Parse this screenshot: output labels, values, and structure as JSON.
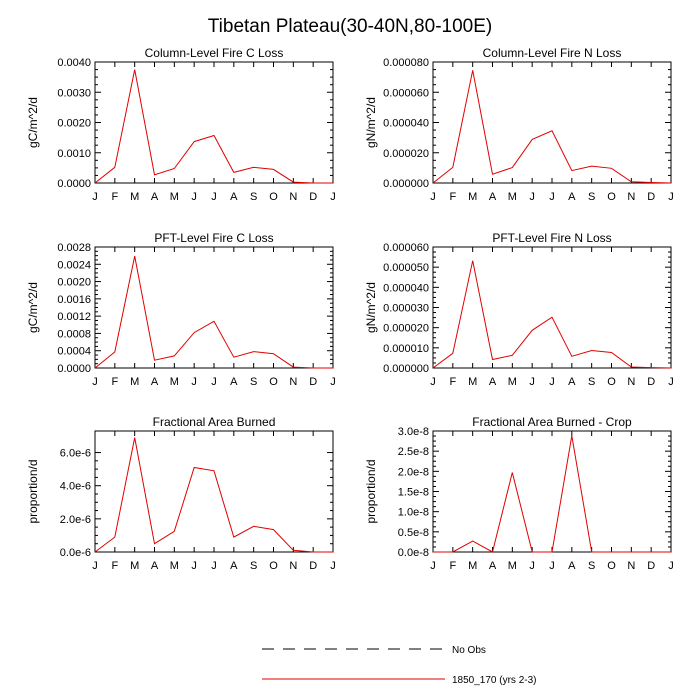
{
  "figure": {
    "title": "Tibetan Plateau(30-40N,80-100E)",
    "colors": {
      "model_line": "#e00000",
      "obs_line": "#000000",
      "axis": "#000000"
    }
  },
  "chart_data": [
    {
      "type": "line",
      "title": "Column-Level Fire C Loss",
      "ylabel": "gC/m^2/d",
      "categories": [
        "J",
        "F",
        "M",
        "A",
        "M",
        "J",
        "J",
        "A",
        "S",
        "O",
        "N",
        "D",
        "J"
      ],
      "ylim": [
        0,
        0.004
      ],
      "y_ticks": [
        "0.0000",
        "0.0010",
        "0.0020",
        "0.0030",
        "0.0040"
      ],
      "series": [
        {
          "name": "1850_170 (yrs 2-3)",
          "values": [
            0.0,
            0.00052,
            0.00375,
            0.00027,
            0.00048,
            0.00137,
            0.00157,
            0.00035,
            0.00052,
            0.00045,
            3e-05,
            0.0,
            0.0
          ]
        }
      ]
    },
    {
      "type": "line",
      "title": "Column-Level Fire N Loss",
      "ylabel": "gN/m^2/d",
      "categories": [
        "J",
        "F",
        "M",
        "A",
        "M",
        "J",
        "J",
        "A",
        "S",
        "O",
        "N",
        "D",
        "J"
      ],
      "ylim": [
        0,
        8e-05
      ],
      "y_ticks": [
        "0.000000",
        "0.000020",
        "0.000040",
        "0.000060",
        "0.000080"
      ],
      "series": [
        {
          "name": "1850_170 (yrs 2-3)",
          "values": [
            0.0,
            1.03e-05,
            7.45e-05,
            5.8e-06,
            1.02e-05,
            2.88e-05,
            3.45e-05,
            8.2e-06,
            1.12e-05,
            9.7e-06,
            8e-07,
            3e-07,
            0.0
          ]
        }
      ]
    },
    {
      "type": "line",
      "title": "PFT-Level Fire C Loss",
      "ylabel": "gC/m^2/d",
      "categories": [
        "J",
        "F",
        "M",
        "A",
        "M",
        "J",
        "J",
        "A",
        "S",
        "O",
        "N",
        "D",
        "J"
      ],
      "ylim": [
        0,
        0.0028
      ],
      "y_ticks": [
        "0.0000",
        "0.0004",
        "0.0008",
        "0.0012",
        "0.0016",
        "0.0020",
        "0.0024",
        "0.0028"
      ],
      "series": [
        {
          "name": "1850_170 (yrs 2-3)",
          "values": [
            0.0,
            0.00037,
            0.00259,
            0.00018,
            0.00028,
            0.00082,
            0.00108,
            0.00025,
            0.00038,
            0.00033,
            2e-05,
            0.0,
            0.0
          ]
        }
      ]
    },
    {
      "type": "line",
      "title": "PFT-Level Fire N Loss",
      "ylabel": "gN/m^2/d",
      "categories": [
        "J",
        "F",
        "M",
        "A",
        "M",
        "J",
        "J",
        "A",
        "S",
        "O",
        "N",
        "D",
        "J"
      ],
      "ylim": [
        0,
        6e-05
      ],
      "y_ticks": [
        "0.000000",
        "0.000010",
        "0.000020",
        "0.000030",
        "0.000040",
        "0.000050",
        "0.000060"
      ],
      "series": [
        {
          "name": "1850_170 (yrs 2-3)",
          "values": [
            0.0,
            7.3e-06,
            5.32e-05,
            4.2e-06,
            6.3e-06,
            1.87e-05,
            2.52e-05,
            5.8e-06,
            8.7e-06,
            7.7e-06,
            5e-07,
            2e-07,
            0.0
          ]
        }
      ]
    },
    {
      "type": "line",
      "title": "Fractional Area Burned",
      "ylabel": "proportion/d",
      "categories": [
        "J",
        "F",
        "M",
        "A",
        "M",
        "J",
        "J",
        "A",
        "S",
        "O",
        "N",
        "D",
        "J"
      ],
      "ylim": [
        0,
        7.3e-06
      ],
      "y_ticks": [
        "0.0e-6",
        "2.0e-6",
        "4.0e-6",
        "6.0e-6"
      ],
      "y_tick_values": [
        0,
        2e-06,
        4e-06,
        6e-06
      ],
      "series": [
        {
          "name": "1850_170 (yrs 2-3)",
          "values": [
            0.0,
            9e-07,
            6.9e-06,
            5e-07,
            1.25e-06,
            5.1e-06,
            4.9e-06,
            9e-07,
            1.55e-06,
            1.35e-06,
            1e-07,
            0.0,
            0.0
          ]
        }
      ]
    },
    {
      "type": "line",
      "title": "Fractional Area Burned - Crop",
      "ylabel": "proportion/d",
      "categories": [
        "J",
        "F",
        "M",
        "A",
        "M",
        "J",
        "J",
        "A",
        "S",
        "O",
        "N",
        "D",
        "J"
      ],
      "ylim": [
        0,
        3e-08
      ],
      "y_ticks": [
        "0.0e-8",
        "0.5e-8",
        "1.0e-8",
        "1.5e-8",
        "2.0e-8",
        "2.5e-8",
        "3.0e-8"
      ],
      "series": [
        {
          "name": "1850_170 (yrs 2-3)",
          "values": [
            0.0,
            0.0,
            2.7e-09,
            0.0,
            1.97e-08,
            0.0,
            0.0,
            2.88e-08,
            0.0,
            0.0,
            0.0,
            0.0,
            0.0
          ]
        }
      ]
    }
  ],
  "legend": {
    "items": [
      {
        "label": "No Obs",
        "style": "dashed"
      },
      {
        "label": "1850_170 (yrs 2-3)",
        "style": "solid"
      }
    ]
  }
}
